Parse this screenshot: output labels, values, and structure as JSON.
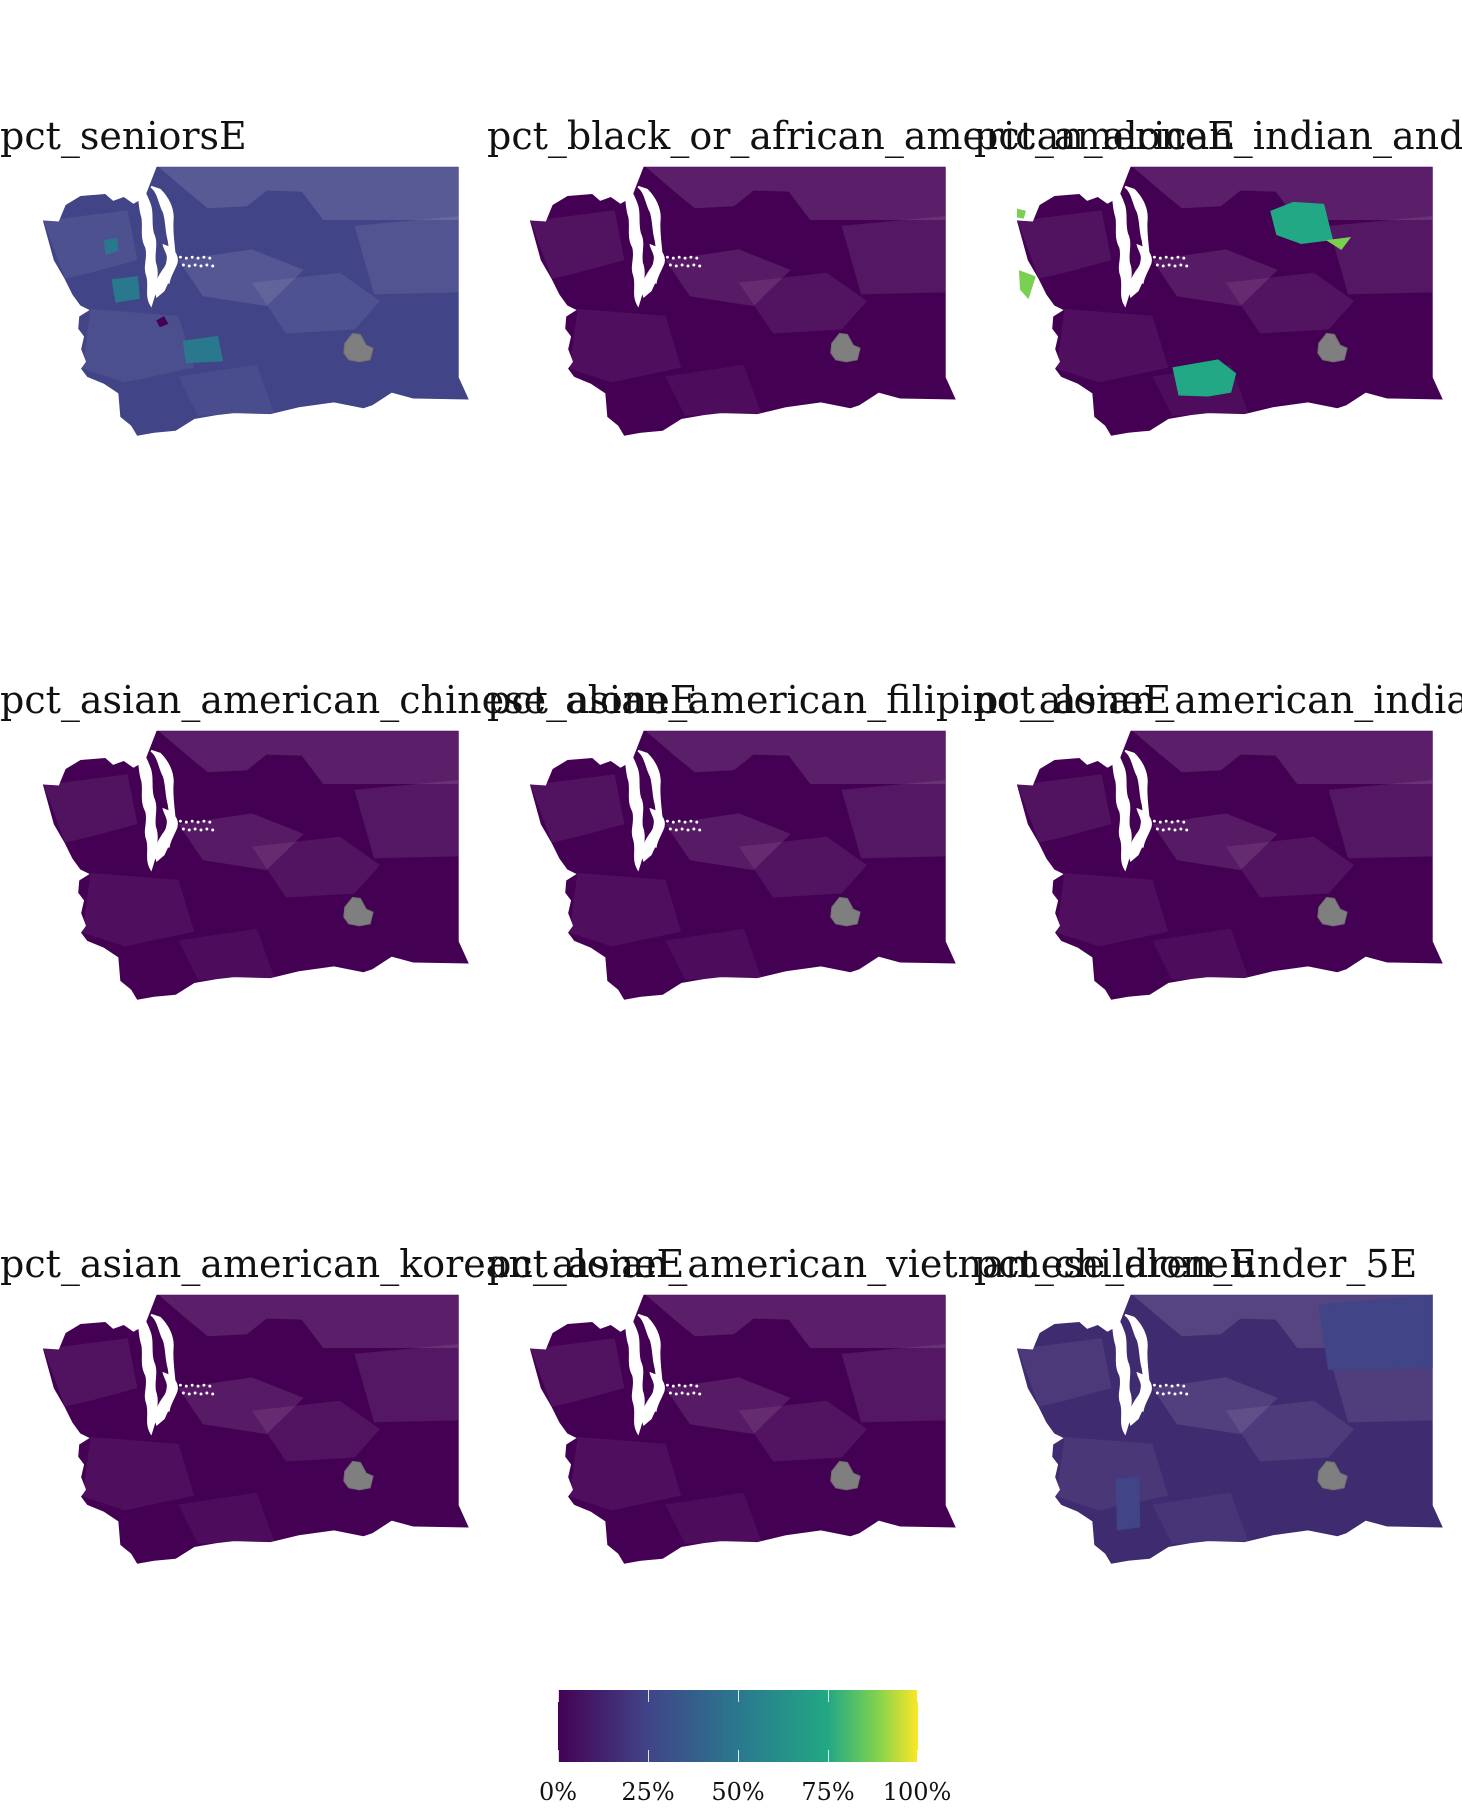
{
  "map_data": {
    "type": "choropleth-facet",
    "region": "Washington",
    "colors": {
      "low": "#440154",
      "q1": "#414487",
      "mid": "#2A788E",
      "q3": "#22A884",
      "high_mid": "#7AD151",
      "high": "#FDE725",
      "missing": "#7F7F7F",
      "water": "#ffffff",
      "background": "#ffffff"
    },
    "panels": [
      {
        "title": "pct_seniorsE",
        "base": "#414487",
        "accents": [
          {
            "name": "olympic-patch",
            "color": "#2A788E"
          },
          {
            "name": "southwest-patch",
            "color": "#2A788E"
          },
          {
            "name": "central-patch",
            "color": "#2A788E"
          },
          {
            "name": "dark-spot",
            "color": "#440154"
          }
        ]
      },
      {
        "title": "pct_black_or_african_american_aloneE",
        "base": "#440154",
        "accents": []
      },
      {
        "title": "pct_american_indian_and_alaska_native_aloneE",
        "base": "#440154",
        "accents": [
          {
            "name": "northeast-reservation",
            "color": "#22A884"
          },
          {
            "name": "yakima-reservation",
            "color": "#22A884"
          },
          {
            "name": "makah-reservation",
            "color": "#7AD151"
          },
          {
            "name": "quinault-reservation",
            "color": "#7AD151"
          },
          {
            "name": "spokane-reservation",
            "color": "#7AD151"
          }
        ]
      },
      {
        "title": "pct_asian_american_chinese_aloneE",
        "base": "#440154",
        "accents": []
      },
      {
        "title": "pct_asian_american_filipino_aloneE",
        "base": "#440154",
        "accents": []
      },
      {
        "title": "pct_asian_american_indian_aloneE",
        "base": "#440154",
        "accents": []
      },
      {
        "title": "pct_asian_american_korean_aloneE",
        "base": "#440154",
        "accents": []
      },
      {
        "title": "pct_asian_american_vietnamese_aloneE",
        "base": "#440154",
        "accents": []
      },
      {
        "title": "pct_children_under_5E",
        "base": "#3f2b70",
        "accents": [
          {
            "name": "southwest-block",
            "color": "#414487"
          },
          {
            "name": "northeast-tint",
            "color": "#414487"
          }
        ]
      }
    ],
    "legend": {
      "type": "continuous-gradient",
      "palette": "viridis",
      "breaks": [
        "0%",
        "25%",
        "50%",
        "75%",
        "100%"
      ]
    }
  }
}
